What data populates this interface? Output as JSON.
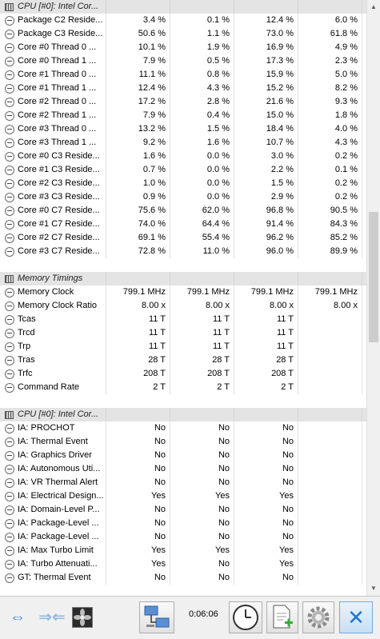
{
  "sections": [
    {
      "title": "CPU [#0]: Intel Cor...",
      "rows": [
        {
          "label": "Package C2 Reside...",
          "v": [
            "3.4 %",
            "0.1 %",
            "12.4 %",
            "6.0 %"
          ]
        },
        {
          "label": "Package C3 Reside...",
          "v": [
            "50.6 %",
            "1.1 %",
            "73.0 %",
            "61.8 %"
          ]
        },
        {
          "label": "Core #0 Thread 0 ...",
          "v": [
            "10.1 %",
            "1.9 %",
            "16.9 %",
            "4.9 %"
          ]
        },
        {
          "label": "Core #0 Thread 1 ...",
          "v": [
            "7.9 %",
            "0.5 %",
            "17.3 %",
            "2.3 %"
          ]
        },
        {
          "label": "Core #1 Thread 0 ...",
          "v": [
            "11.1 %",
            "0.8 %",
            "15.9 %",
            "5.0 %"
          ]
        },
        {
          "label": "Core #1 Thread 1 ...",
          "v": [
            "12.4 %",
            "4.3 %",
            "15.2 %",
            "8.2 %"
          ]
        },
        {
          "label": "Core #2 Thread 0 ...",
          "v": [
            "17.2 %",
            "2.8 %",
            "21.6 %",
            "9.3 %"
          ]
        },
        {
          "label": "Core #2 Thread 1 ...",
          "v": [
            "7.9 %",
            "0.4 %",
            "15.0 %",
            "1.8 %"
          ]
        },
        {
          "label": "Core #3 Thread 0 ...",
          "v": [
            "13.2 %",
            "1.5 %",
            "18.4 %",
            "4.0 %"
          ]
        },
        {
          "label": "Core #3 Thread 1 ...",
          "v": [
            "9.2 %",
            "1.6 %",
            "10.7 %",
            "4.3 %"
          ]
        },
        {
          "label": "Core #0 C3 Reside...",
          "v": [
            "1.6 %",
            "0.0 %",
            "3.0 %",
            "0.2 %"
          ]
        },
        {
          "label": "Core #1 C3 Reside...",
          "v": [
            "0.7 %",
            "0.0 %",
            "2.2 %",
            "0.1 %"
          ]
        },
        {
          "label": "Core #2 C3 Reside...",
          "v": [
            "1.0 %",
            "0.0 %",
            "1.5 %",
            "0.2 %"
          ]
        },
        {
          "label": "Core #3 C3 Reside...",
          "v": [
            "0.9 %",
            "0.0 %",
            "2.9 %",
            "0.2 %"
          ]
        },
        {
          "label": "Core #0 C7 Reside...",
          "v": [
            "75.6 %",
            "62.0 %",
            "96.8 %",
            "90.5 %"
          ]
        },
        {
          "label": "Core #1 C7 Reside...",
          "v": [
            "74.0 %",
            "64.4 %",
            "91.4 %",
            "84.3 %"
          ]
        },
        {
          "label": "Core #2 C7 Reside...",
          "v": [
            "69.1 %",
            "55.4 %",
            "96.2 %",
            "85.2 %"
          ]
        },
        {
          "label": "Core #3 C7 Reside...",
          "v": [
            "72.8 %",
            "11.0 %",
            "96.0 %",
            "89.9 %"
          ]
        }
      ]
    },
    {
      "title": "Memory Timings",
      "rows": [
        {
          "label": "Memory Clock",
          "v": [
            "799.1 MHz",
            "799.1 MHz",
            "799.1 MHz",
            "799.1 MHz"
          ]
        },
        {
          "label": "Memory Clock Ratio",
          "v": [
            "8.00 x",
            "8.00 x",
            "8.00 x",
            "8.00 x"
          ]
        },
        {
          "label": "Tcas",
          "v": [
            "11 T",
            "11 T",
            "11 T",
            ""
          ]
        },
        {
          "label": "Trcd",
          "v": [
            "11 T",
            "11 T",
            "11 T",
            ""
          ]
        },
        {
          "label": "Trp",
          "v": [
            "11 T",
            "11 T",
            "11 T",
            ""
          ]
        },
        {
          "label": "Tras",
          "v": [
            "28 T",
            "28 T",
            "28 T",
            ""
          ]
        },
        {
          "label": "Trfc",
          "v": [
            "208 T",
            "208 T",
            "208 T",
            ""
          ]
        },
        {
          "label": "Command Rate",
          "v": [
            "2 T",
            "2 T",
            "2 T",
            ""
          ]
        }
      ]
    },
    {
      "title": "CPU [#0]: Intel Cor...",
      "rows": [
        {
          "label": "IA: PROCHOT",
          "v": [
            "No",
            "No",
            "No",
            ""
          ]
        },
        {
          "label": "IA: Thermal Event",
          "v": [
            "No",
            "No",
            "No",
            ""
          ]
        },
        {
          "label": "IA: Graphics Driver",
          "v": [
            "No",
            "No",
            "No",
            ""
          ]
        },
        {
          "label": "IA: Autonomous Uti...",
          "v": [
            "No",
            "No",
            "No",
            ""
          ]
        },
        {
          "label": "IA: VR Thermal Alert",
          "v": [
            "No",
            "No",
            "No",
            ""
          ]
        },
        {
          "label": "IA: Electrical Design...",
          "v": [
            "Yes",
            "Yes",
            "Yes",
            ""
          ]
        },
        {
          "label": "IA: Domain-Level P...",
          "v": [
            "No",
            "No",
            "No",
            ""
          ]
        },
        {
          "label": "IA: Package-Level ...",
          "v": [
            "No",
            "No",
            "No",
            ""
          ]
        },
        {
          "label": "IA: Package-Level ...",
          "v": [
            "No",
            "No",
            "No",
            ""
          ]
        },
        {
          "label": "IA: Max Turbo Limit",
          "v": [
            "Yes",
            "Yes",
            "Yes",
            ""
          ]
        },
        {
          "label": "IA: Turbo Attenuati...",
          "v": [
            "Yes",
            "No",
            "Yes",
            ""
          ]
        },
        {
          "label": "GT: Thermal Event",
          "v": [
            "No",
            "No",
            "No",
            ""
          ]
        }
      ]
    }
  ],
  "toolbar": {
    "elapsed_time": "0:06:06",
    "buttons": [
      {
        "name": "layout-arrows-button",
        "icon": "double-arrow-icon"
      },
      {
        "name": "collapse-arrows-button",
        "icon": "arrows-in-icon"
      },
      {
        "name": "fan-button",
        "icon": "fan-icon"
      },
      {
        "name": "network-button",
        "icon": "network-computers-icon"
      },
      {
        "name": "clock-button",
        "icon": "clock-icon"
      },
      {
        "name": "add-report-button",
        "icon": "add-document-icon"
      },
      {
        "name": "settings-button",
        "icon": "gear-icon"
      },
      {
        "name": "close-button",
        "icon": "close-icon"
      }
    ]
  }
}
